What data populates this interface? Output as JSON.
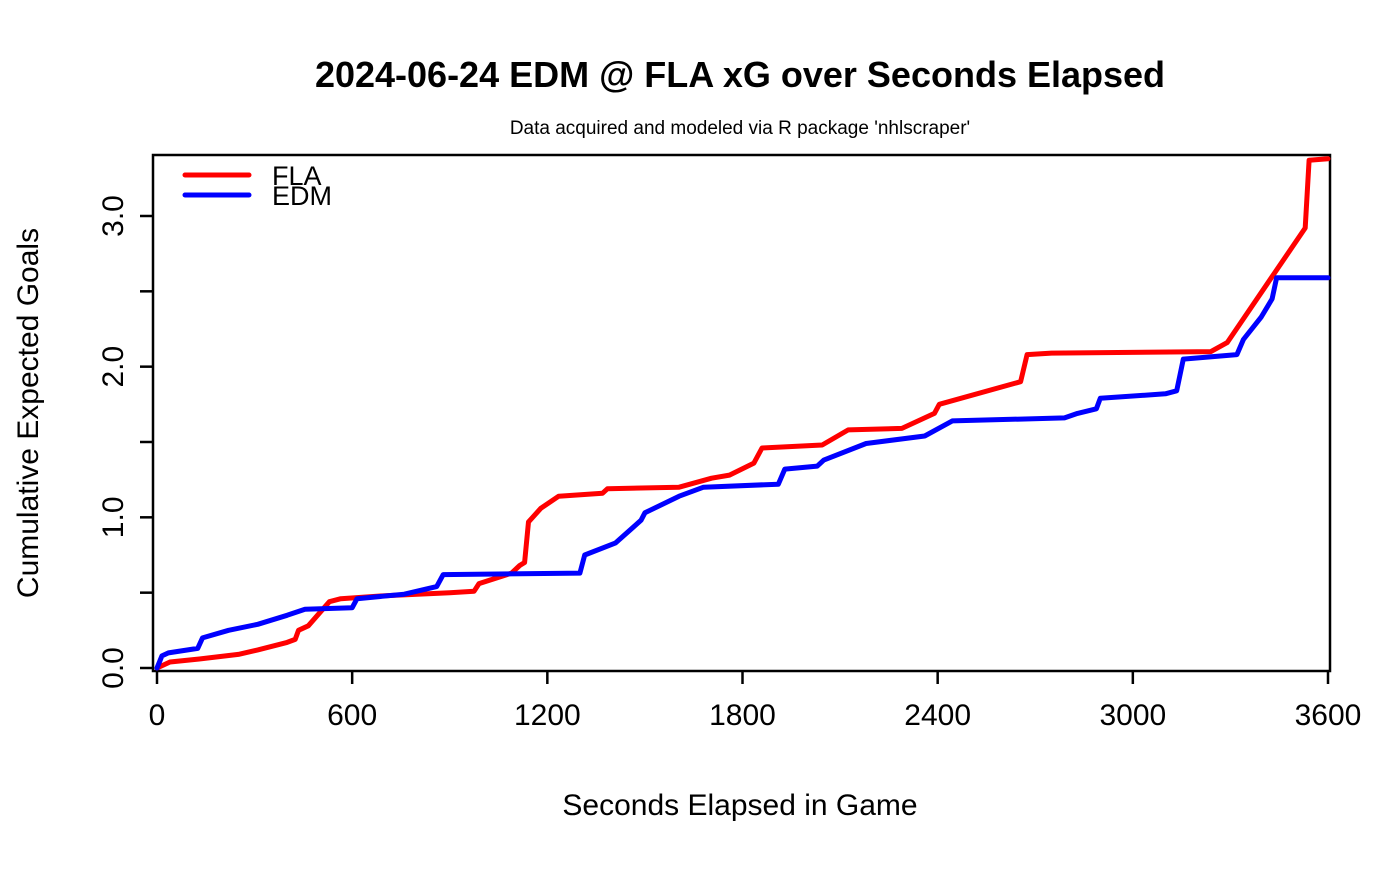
{
  "chart_data": {
    "type": "line",
    "title": "2024-06-24 EDM @ FLA xG over Seconds Elapsed",
    "subtitle": "Data acquired and modeled via R package 'nhlscraper'",
    "xlabel": "Seconds Elapsed in Game",
    "ylabel": "Cumulative Expected Goals",
    "xlim": [
      0,
      3600
    ],
    "ylim": [
      0,
      3.4
    ],
    "grid": false,
    "legend_position": "topleft",
    "x_ticks": [
      {
        "v": 0,
        "label": "0"
      },
      {
        "v": 600,
        "label": "600"
      },
      {
        "v": 1200,
        "label": "1200"
      },
      {
        "v": 1800,
        "label": "1800"
      },
      {
        "v": 2400,
        "label": "2400"
      },
      {
        "v": 3000,
        "label": "3000"
      },
      {
        "v": 3600,
        "label": "3600"
      }
    ],
    "y_ticks": [
      {
        "v": 0.0,
        "label": "0.0"
      },
      {
        "v": 0.5,
        "label": ""
      },
      {
        "v": 1.0,
        "label": "1.0"
      },
      {
        "v": 1.5,
        "label": ""
      },
      {
        "v": 2.0,
        "label": "2.0"
      },
      {
        "v": 2.5,
        "label": ""
      },
      {
        "v": 3.0,
        "label": "3.0"
      }
    ],
    "series": [
      {
        "name": "FLA",
        "color": "#FF0000",
        "points": [
          [
            0,
            0
          ],
          [
            40,
            0.04
          ],
          [
            130,
            0.06
          ],
          [
            250,
            0.09
          ],
          [
            310,
            0.12
          ],
          [
            400,
            0.17
          ],
          [
            425,
            0.19
          ],
          [
            435,
            0.25
          ],
          [
            465,
            0.28
          ],
          [
            530,
            0.44
          ],
          [
            565,
            0.46
          ],
          [
            700,
            0.48
          ],
          [
            900,
            0.5
          ],
          [
            975,
            0.51
          ],
          [
            990,
            0.56
          ],
          [
            1090,
            0.63
          ],
          [
            1115,
            0.68
          ],
          [
            1130,
            0.7
          ],
          [
            1142,
            0.97
          ],
          [
            1155,
            1.0
          ],
          [
            1180,
            1.06
          ],
          [
            1235,
            1.14
          ],
          [
            1370,
            1.16
          ],
          [
            1385,
            1.19
          ],
          [
            1605,
            1.2
          ],
          [
            1705,
            1.26
          ],
          [
            1760,
            1.28
          ],
          [
            1835,
            1.36
          ],
          [
            1860,
            1.46
          ],
          [
            2045,
            1.48
          ],
          [
            2125,
            1.58
          ],
          [
            2290,
            1.59
          ],
          [
            2390,
            1.69
          ],
          [
            2405,
            1.75
          ],
          [
            2655,
            1.9
          ],
          [
            2675,
            2.08
          ],
          [
            2750,
            2.09
          ],
          [
            3240,
            2.1
          ],
          [
            3290,
            2.16
          ],
          [
            3530,
            2.92
          ],
          [
            3542,
            3.37
          ],
          [
            3600,
            3.38
          ]
        ]
      },
      {
        "name": "EDM",
        "color": "#0000FF",
        "points": [
          [
            0,
            0
          ],
          [
            15,
            0.08
          ],
          [
            35,
            0.1
          ],
          [
            125,
            0.13
          ],
          [
            140,
            0.2
          ],
          [
            220,
            0.25
          ],
          [
            310,
            0.29
          ],
          [
            400,
            0.35
          ],
          [
            455,
            0.39
          ],
          [
            600,
            0.4
          ],
          [
            615,
            0.46
          ],
          [
            760,
            0.49
          ],
          [
            860,
            0.54
          ],
          [
            880,
            0.62
          ],
          [
            1300,
            0.63
          ],
          [
            1315,
            0.75
          ],
          [
            1410,
            0.83
          ],
          [
            1488,
            0.98
          ],
          [
            1500,
            1.03
          ],
          [
            1605,
            1.14
          ],
          [
            1680,
            1.2
          ],
          [
            1910,
            1.22
          ],
          [
            1930,
            1.32
          ],
          [
            2030,
            1.34
          ],
          [
            2050,
            1.38
          ],
          [
            2180,
            1.49
          ],
          [
            2360,
            1.54
          ],
          [
            2445,
            1.64
          ],
          [
            2790,
            1.66
          ],
          [
            2830,
            1.69
          ],
          [
            2888,
            1.72
          ],
          [
            2900,
            1.79
          ],
          [
            3100,
            1.82
          ],
          [
            3135,
            1.84
          ],
          [
            3155,
            2.05
          ],
          [
            3320,
            2.08
          ],
          [
            3340,
            2.18
          ],
          [
            3395,
            2.33
          ],
          [
            3428,
            2.45
          ],
          [
            3442,
            2.59
          ],
          [
            3600,
            2.59
          ]
        ]
      }
    ]
  }
}
